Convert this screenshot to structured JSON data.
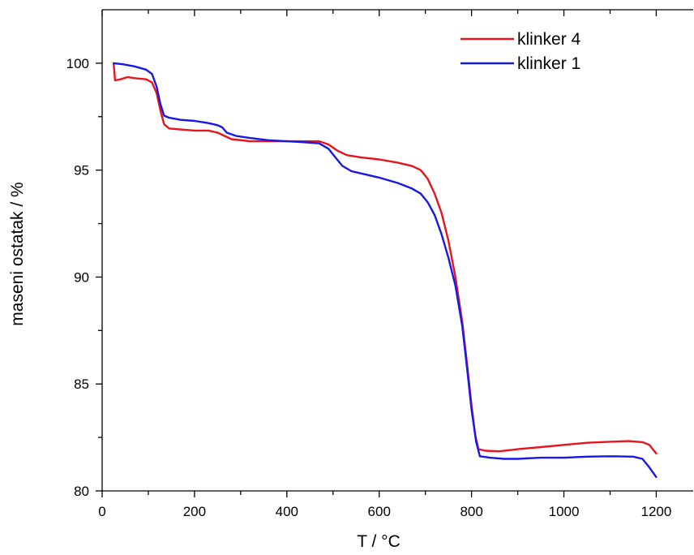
{
  "chart_data": {
    "type": "line",
    "title": "",
    "xlabel": "T / °C",
    "ylabel": "maseni ostatak / %",
    "xlim": [
      0,
      1280
    ],
    "ylim": [
      80,
      102.5
    ],
    "xticks": [
      0,
      200,
      400,
      600,
      800,
      1000,
      1200
    ],
    "yticks": [
      80,
      85,
      90,
      95,
      100
    ],
    "grid": false,
    "legend_position": "top-right",
    "series": [
      {
        "name": "klinker 4",
        "color": "#e8141b",
        "points": [
          [
            25,
            100.0
          ],
          [
            28,
            99.2
          ],
          [
            40,
            99.25
          ],
          [
            55,
            99.35
          ],
          [
            70,
            99.3
          ],
          [
            95,
            99.25
          ],
          [
            108,
            99.1
          ],
          [
            118,
            98.6
          ],
          [
            126,
            97.8
          ],
          [
            134,
            97.15
          ],
          [
            145,
            96.95
          ],
          [
            170,
            96.9
          ],
          [
            200,
            96.85
          ],
          [
            230,
            96.85
          ],
          [
            250,
            96.75
          ],
          [
            265,
            96.6
          ],
          [
            280,
            96.45
          ],
          [
            320,
            96.35
          ],
          [
            380,
            96.35
          ],
          [
            440,
            96.35
          ],
          [
            470,
            96.35
          ],
          [
            490,
            96.2
          ],
          [
            510,
            95.9
          ],
          [
            530,
            95.7
          ],
          [
            560,
            95.6
          ],
          [
            600,
            95.5
          ],
          [
            640,
            95.35
          ],
          [
            670,
            95.2
          ],
          [
            690,
            95.0
          ],
          [
            705,
            94.6
          ],
          [
            720,
            93.9
          ],
          [
            735,
            93.0
          ],
          [
            750,
            91.7
          ],
          [
            765,
            90.0
          ],
          [
            780,
            87.9
          ],
          [
            790,
            86.0
          ],
          [
            800,
            84.0
          ],
          [
            808,
            82.6
          ],
          [
            815,
            81.95
          ],
          [
            830,
            81.88
          ],
          [
            860,
            81.85
          ],
          [
            900,
            81.95
          ],
          [
            950,
            82.05
          ],
          [
            1000,
            82.15
          ],
          [
            1050,
            82.25
          ],
          [
            1100,
            82.3
          ],
          [
            1140,
            82.33
          ],
          [
            1170,
            82.28
          ],
          [
            1185,
            82.15
          ],
          [
            1200,
            81.75
          ]
        ]
      },
      {
        "name": "klinker 1",
        "color": "#1818e6",
        "points": [
          [
            25,
            100.0
          ],
          [
            45,
            99.95
          ],
          [
            70,
            99.85
          ],
          [
            95,
            99.7
          ],
          [
            108,
            99.5
          ],
          [
            118,
            98.9
          ],
          [
            126,
            98.1
          ],
          [
            134,
            97.55
          ],
          [
            145,
            97.45
          ],
          [
            170,
            97.35
          ],
          [
            200,
            97.3
          ],
          [
            230,
            97.2
          ],
          [
            250,
            97.1
          ],
          [
            260,
            97.0
          ],
          [
            270,
            96.75
          ],
          [
            290,
            96.6
          ],
          [
            320,
            96.5
          ],
          [
            360,
            96.4
          ],
          [
            400,
            96.35
          ],
          [
            440,
            96.3
          ],
          [
            470,
            96.25
          ],
          [
            490,
            96.0
          ],
          [
            505,
            95.6
          ],
          [
            520,
            95.2
          ],
          [
            540,
            94.95
          ],
          [
            570,
            94.8
          ],
          [
            600,
            94.65
          ],
          [
            640,
            94.4
          ],
          [
            670,
            94.15
          ],
          [
            690,
            93.9
          ],
          [
            705,
            93.5
          ],
          [
            720,
            92.9
          ],
          [
            735,
            92.0
          ],
          [
            750,
            90.9
          ],
          [
            765,
            89.6
          ],
          [
            780,
            87.7
          ],
          [
            790,
            85.8
          ],
          [
            800,
            83.8
          ],
          [
            810,
            82.3
          ],
          [
            818,
            81.62
          ],
          [
            840,
            81.55
          ],
          [
            870,
            81.5
          ],
          [
            900,
            81.5
          ],
          [
            950,
            81.55
          ],
          [
            1000,
            81.55
          ],
          [
            1050,
            81.6
          ],
          [
            1100,
            81.62
          ],
          [
            1150,
            81.6
          ],
          [
            1170,
            81.5
          ],
          [
            1185,
            81.1
          ],
          [
            1200,
            80.65
          ]
        ]
      }
    ]
  }
}
